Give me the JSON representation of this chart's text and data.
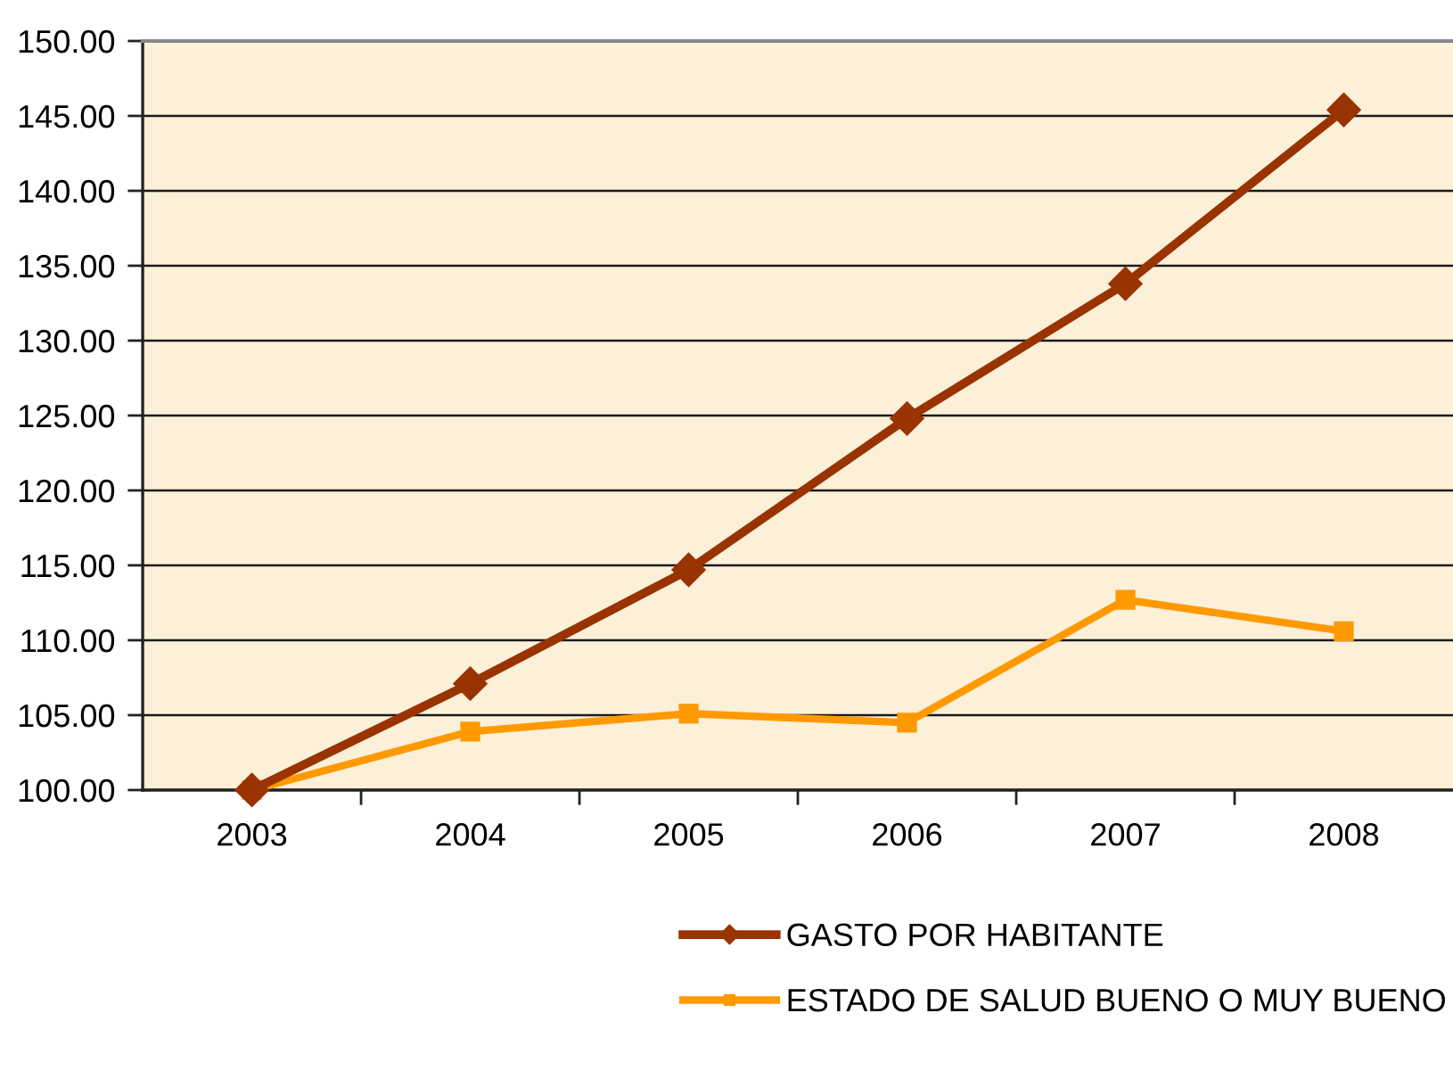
{
  "chart_data": {
    "type": "line",
    "categories": [
      "2003",
      "2004",
      "2005",
      "2006",
      "2007",
      "2008"
    ],
    "series": [
      {
        "name": "GASTO POR HABITANTE",
        "color": "#993300",
        "marker": "diamond",
        "values": [
          100,
          107.1,
          114.7,
          124.8,
          133.8,
          145.4
        ]
      },
      {
        "name": "ESTADO DE SALUD BUENO O MUY BUENO",
        "color": "#ff9900",
        "marker": "square",
        "values": [
          100,
          103.9,
          105.1,
          104.5,
          112.7,
          110.6
        ]
      }
    ],
    "ylim": [
      100,
      150
    ],
    "yticks": [
      {
        "value": 100,
        "label": "100.00"
      },
      {
        "value": 105,
        "label": "105.00"
      },
      {
        "value": 110,
        "label": "110.00"
      },
      {
        "value": 115,
        "label": "115.00"
      },
      {
        "value": 120,
        "label": "120.00"
      },
      {
        "value": 125,
        "label": "125.00"
      },
      {
        "value": 130,
        "label": "130.00"
      },
      {
        "value": 135,
        "label": "135.00"
      },
      {
        "value": 140,
        "label": "140.00"
      },
      {
        "value": 145,
        "label": "145.00"
      },
      {
        "value": 150,
        "label": "150.00"
      }
    ],
    "grid": "y",
    "legend": "bottom",
    "line_style": "solid"
  }
}
